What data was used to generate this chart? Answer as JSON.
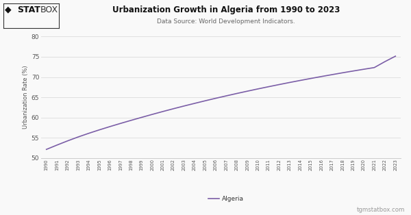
{
  "title": "Urbanization Growth in Algeria from 1990 to 2023",
  "subtitle": "Data Source: World Development Indicators.",
  "ylabel": "Urbanization Rate (%)",
  "legend_label": "Algeria",
  "watermark": "tgmstatbox.com",
  "line_color": "#7b5ea7",
  "background_color": "#f9f9f9",
  "grid_color": "#e0e0e0",
  "years": [
    1990,
    1991,
    1992,
    1993,
    1994,
    1995,
    1996,
    1997,
    1998,
    1999,
    2000,
    2001,
    2002,
    2003,
    2004,
    2005,
    2006,
    2007,
    2008,
    2009,
    2010,
    2011,
    2012,
    2013,
    2014,
    2015,
    2016,
    2017,
    2018,
    2019,
    2020,
    2021,
    2022,
    2023
  ],
  "values": [
    52.13,
    53.2,
    54.23,
    55.2,
    56.1,
    56.95,
    57.76,
    58.54,
    59.3,
    60.04,
    60.77,
    61.48,
    62.17,
    62.84,
    63.49,
    64.13,
    64.75,
    65.35,
    65.94,
    66.51,
    67.07,
    67.61,
    68.14,
    68.66,
    69.16,
    69.65,
    70.13,
    70.59,
    71.05,
    71.49,
    71.92,
    72.34,
    73.8,
    75.15
  ],
  "ylim": [
    50,
    80
  ],
  "yticks": [
    50,
    55,
    60,
    65,
    70,
    75,
    80
  ]
}
